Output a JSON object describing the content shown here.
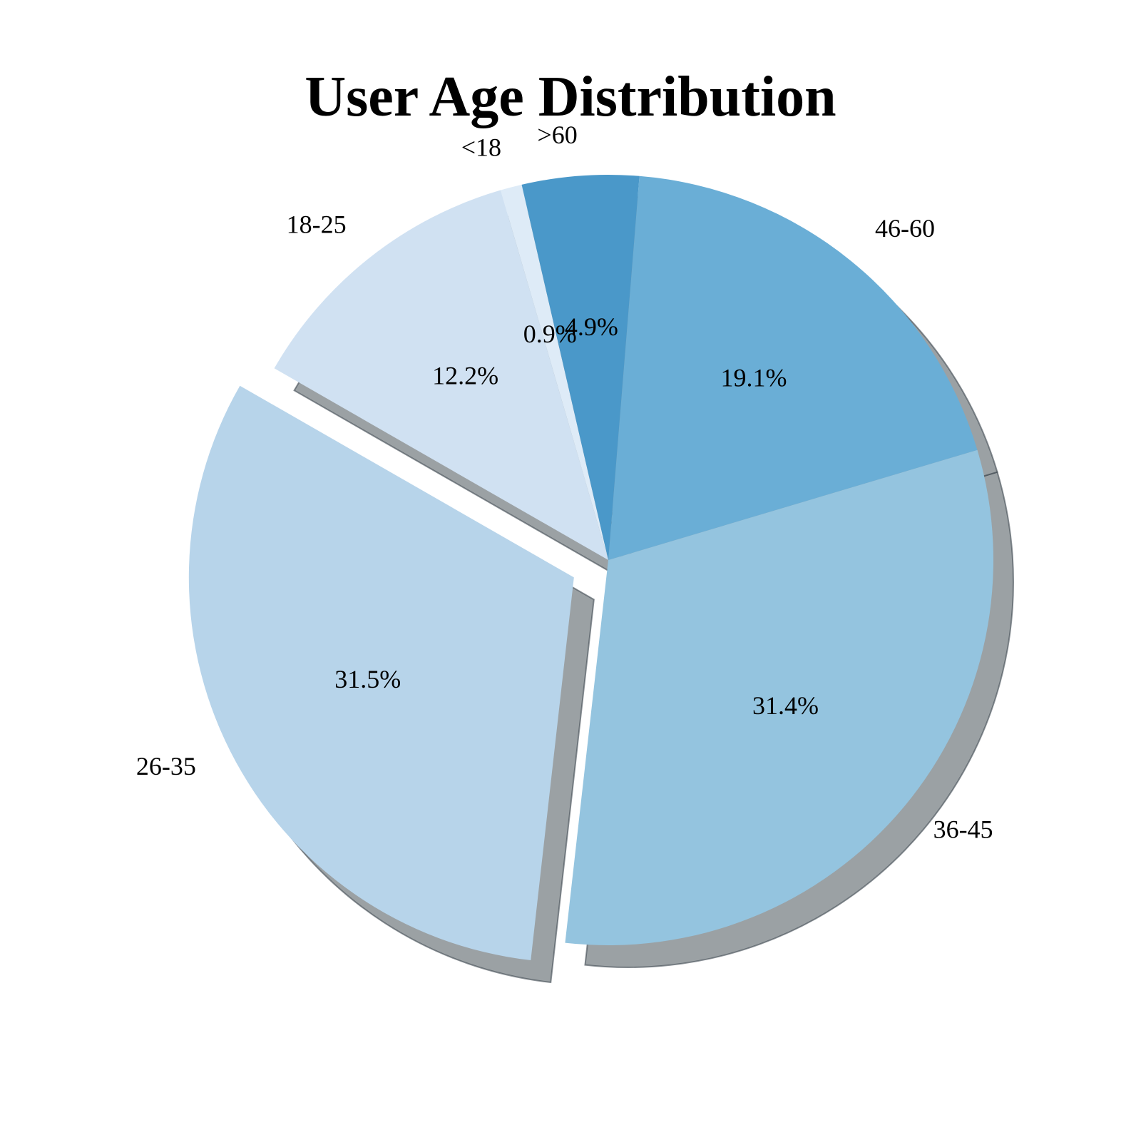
{
  "chart_data": {
    "type": "pie",
    "title": "User Age Distribution",
    "categories": [
      "<18",
      "18-25",
      "26-35",
      "36-45",
      "46-60",
      ">60"
    ],
    "values": [
      0.9,
      12.2,
      31.5,
      31.4,
      19.1,
      4.9
    ],
    "value_labels": [
      "0.9%",
      "12.2%",
      "31.5%",
      "31.4%",
      "19.1%",
      "4.9%"
    ],
    "exploded": [
      "26-35"
    ],
    "shadow": true,
    "start_angle_deg": 103,
    "direction": "counterclockwise",
    "colors": [
      "#deebf7",
      "#d0e1f2",
      "#b7d4ea",
      "#94c4df",
      "#6aaed6",
      "#4a98c9"
    ]
  }
}
